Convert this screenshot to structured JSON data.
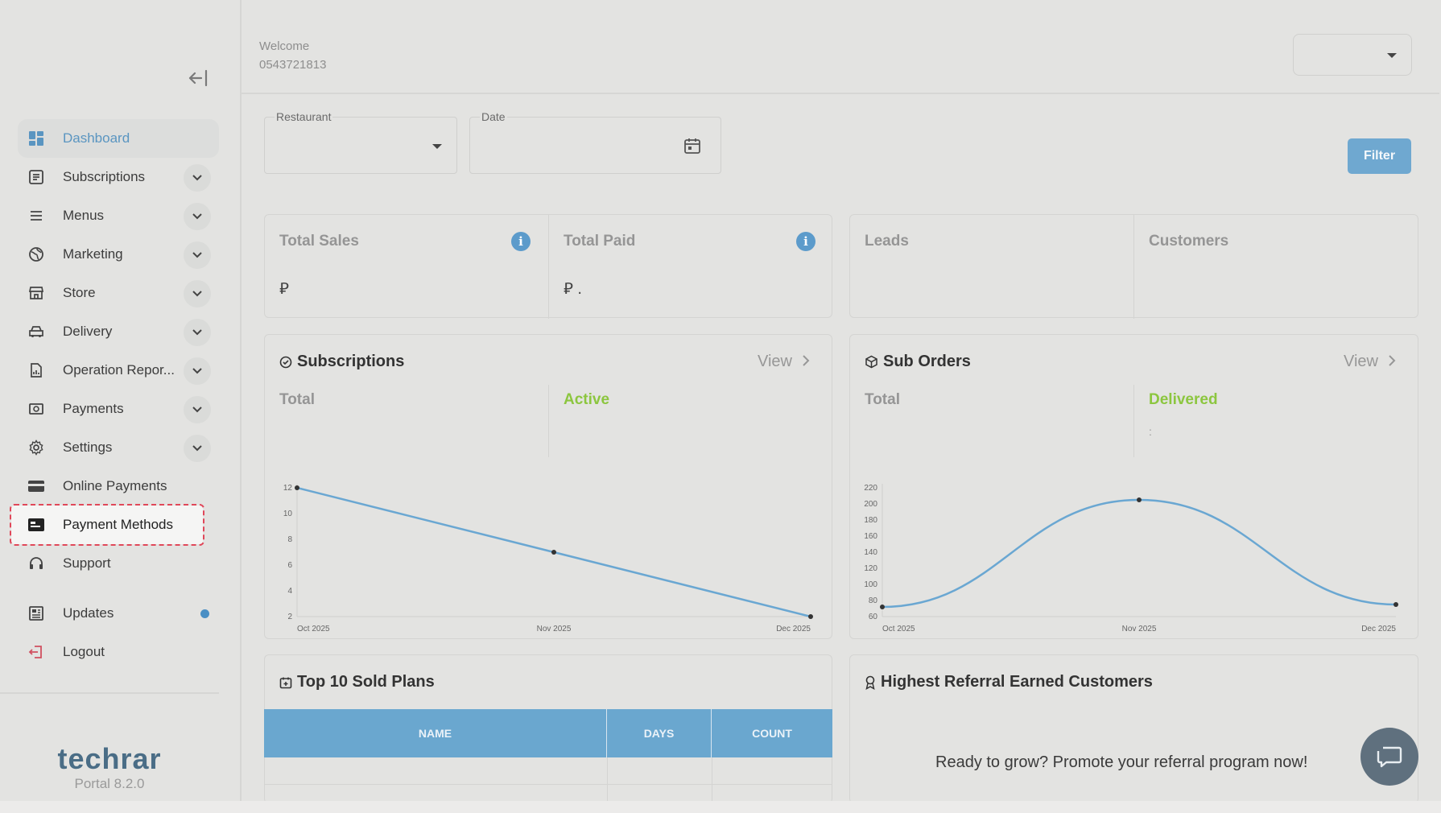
{
  "header": {
    "welcome_label": "Welcome",
    "phone": "0543721813",
    "top_select_value": ""
  },
  "sidebar": {
    "items": [
      {
        "label": "Dashboard",
        "icon": "dashboard-grid-icon",
        "active": true
      },
      {
        "label": "Subscriptions",
        "icon": "document-list-icon",
        "expandable": true
      },
      {
        "label": "Menus",
        "icon": "hamburger-menu-icon",
        "expandable": true
      },
      {
        "label": "Marketing",
        "icon": "globe-icon",
        "expandable": true
      },
      {
        "label": "Store",
        "icon": "storefront-icon",
        "expandable": true
      },
      {
        "label": "Delivery",
        "icon": "car-icon",
        "expandable": true
      },
      {
        "label": "Operation Repor...",
        "icon": "report-file-icon",
        "expandable": true
      },
      {
        "label": "Payments",
        "icon": "cash-icon",
        "expandable": true
      },
      {
        "label": "Settings",
        "icon": "gear-icon",
        "expandable": true
      },
      {
        "label": "Online Payments",
        "icon": "credit-card-icon"
      },
      {
        "label": "Payment Methods",
        "icon": "payment-card-icon",
        "highlighted": true
      },
      {
        "label": "Support",
        "icon": "headset-icon"
      },
      {
        "label": "Updates",
        "icon": "newspaper-icon",
        "badge_dot": true
      },
      {
        "label": "Logout",
        "icon": "logout-icon"
      }
    ],
    "brand": "techrar",
    "version": "Portal 8.2.0"
  },
  "filters": {
    "restaurant_label": "Restaurant",
    "restaurant_value": "",
    "date_label": "Date",
    "date_value": "",
    "filter_button": "Filter"
  },
  "stats": {
    "total_sales": {
      "title": "Total Sales",
      "value": "⃁"
    },
    "total_paid": {
      "title": "Total Paid",
      "value": "⃁ ."
    },
    "leads": {
      "title": "Leads",
      "value": ""
    },
    "customers": {
      "title": "Customers",
      "value": ""
    }
  },
  "subscriptions_card": {
    "title": "Subscriptions",
    "view_label": "View",
    "total_label": "Total",
    "active_label": "Active",
    "total_value": "",
    "active_value": ""
  },
  "sub_orders_card": {
    "title": "Sub Orders",
    "view_label": "View",
    "total_label": "Total",
    "delivered_label": "Delivered",
    "total_value": "",
    "delivered_value": ":"
  },
  "chart_data": [
    {
      "type": "line",
      "categories": [
        "Oct 2025",
        "Nov 2025",
        "Dec 2025"
      ],
      "values": [
        12,
        7,
        2
      ],
      "yticks": [
        2,
        4,
        6,
        8,
        10,
        12
      ],
      "ylim": [
        2,
        12
      ],
      "smooth": false,
      "color": "#6aa7d2"
    },
    {
      "type": "line",
      "categories": [
        "Oct 2025",
        "Nov 2025",
        "Dec 2025"
      ],
      "values": [
        72,
        205,
        75
      ],
      "yticks": [
        60,
        80,
        100,
        120,
        140,
        160,
        180,
        200,
        220
      ],
      "ylim": [
        60,
        220
      ],
      "smooth": true,
      "color": "#6aa7d2"
    }
  ],
  "top_plans": {
    "title": "Top 10 Sold Plans",
    "columns": [
      "NAME",
      "DAYS",
      "COUNT"
    ]
  },
  "referral": {
    "title": "Highest Referral Earned Customers",
    "empty_message": "Ready to grow? Promote your referral program now!"
  },
  "colors": {
    "accent": "#5c9bcb",
    "active_green": "#8cc63f",
    "highlight_red": "#e0485a"
  }
}
